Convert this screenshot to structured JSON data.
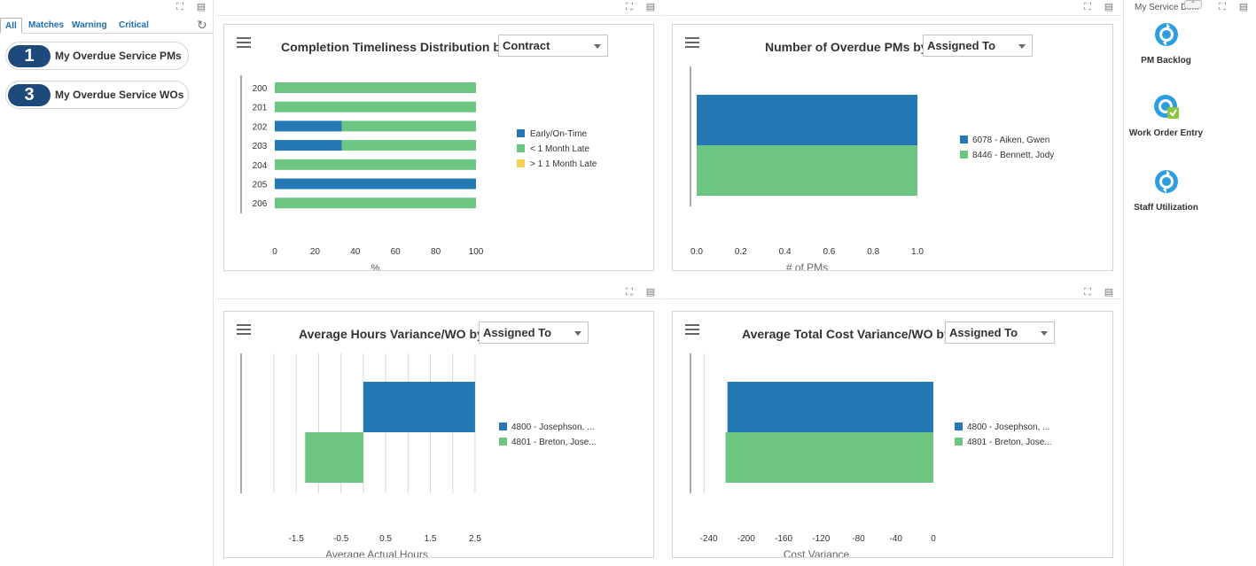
{
  "alerts": {
    "tabs": [
      "All",
      "Matches",
      "Warning",
      "Critical"
    ],
    "items": [
      {
        "count": "1",
        "label": "My Overdue Service PMs"
      },
      {
        "count": "3",
        "label": "My Overdue Service WOs"
      }
    ]
  },
  "charts": {
    "completion": {
      "title": "Completion Timeliness Distribution by",
      "select_value": "Contract",
      "x_axis_label": "%",
      "legend": [
        "Early/On-Time",
        "< 1 Month Late",
        "> 1 1 Month Late"
      ]
    },
    "overdue": {
      "title": "Number of Overdue PMs by",
      "select_value": "Assigned To",
      "x_axis_label": "# of PMs",
      "legend": [
        "6078 - Aiken, Gwen",
        "8446 - Bennett, Jody"
      ]
    },
    "hours": {
      "title": "Average Hours Variance/WO by",
      "select_value": "Assigned To",
      "x_axis_label": "Average Actual Hours",
      "legend": [
        "4800 - Josephson, ...",
        "4801 - Breton, Jose..."
      ]
    },
    "cost": {
      "title": "Average Total Cost Variance/WO by",
      "select_value": "Assigned To",
      "x_axis_label": "Cost Variance",
      "legend": [
        "4800 - Josephson, ...",
        "4801 - Breton, Jose..."
      ]
    }
  },
  "chart_data": [
    {
      "type": "bar",
      "orientation": "horizontal",
      "stacked": true,
      "categories": [
        "200",
        "201",
        "202",
        "203",
        "204",
        "205",
        "206"
      ],
      "series": [
        {
          "name": "Early/On-Time",
          "values": [
            0,
            0,
            33.3,
            33.3,
            0,
            100,
            0
          ],
          "color": "#2478b4"
        },
        {
          "name": "< 1 Month Late",
          "values": [
            100,
            100,
            66.7,
            66.7,
            100,
            0,
            100
          ],
          "color": "#6cc682"
        },
        {
          "name": "> 1 1 Month Late",
          "values": [
            0,
            0,
            0,
            0,
            0,
            0,
            0
          ],
          "color": "#f5d055"
        }
      ],
      "xlim": [
        0,
        100
      ],
      "xticks": [
        "0",
        "20",
        "40",
        "60",
        "80",
        "100"
      ],
      "xlabel": "%",
      "legend_position": "right"
    },
    {
      "type": "bar",
      "orientation": "horizontal",
      "categories": [
        "6078 - Aiken, Gwen",
        "8446 - Bennett, Jody"
      ],
      "values": [
        1.0,
        1.0
      ],
      "colors": [
        "#2478b4",
        "#6cc682"
      ],
      "xlim": [
        0,
        1.0
      ],
      "xticks": [
        "0.0",
        "0.2",
        "0.4",
        "0.6",
        "0.8",
        "1.0"
      ],
      "xlabel": "# of PMs",
      "legend_position": "right"
    },
    {
      "type": "bar",
      "orientation": "horizontal",
      "categories": [
        "4800 - Josephson, ...",
        "4801 - Breton, Jose..."
      ],
      "values": [
        2.5,
        -1.3
      ],
      "colors": [
        "#2478b4",
        "#6cc682"
      ],
      "xlim": [
        -2.0,
        2.6
      ],
      "xticks": [
        "-1.5",
        "-0.5",
        "0.5",
        "1.5",
        "2.5"
      ],
      "xlabel": "Average Actual Hours",
      "legend_position": "right"
    },
    {
      "type": "bar",
      "orientation": "horizontal",
      "categories": [
        "4800 - Josephson, ...",
        "4801 - Breton, Jose..."
      ],
      "values": [
        -220,
        -222
      ],
      "colors": [
        "#2478b4",
        "#6cc682"
      ],
      "xlim": [
        -250,
        0
      ],
      "xticks": [
        "-240",
        "-200",
        "-160",
        "-120",
        "-80",
        "-40",
        "0"
      ],
      "xlabel": "Cost Variance",
      "legend_position": "right"
    }
  ],
  "right": {
    "title": "My Service Dir...",
    "links": [
      {
        "label": "PM Backlog",
        "icon": "refresh-circle-icon"
      },
      {
        "label": "Work Order Entry",
        "icon": "work-order-icon"
      },
      {
        "label": "Staff Utilization",
        "icon": "refresh-circle-icon"
      }
    ]
  }
}
